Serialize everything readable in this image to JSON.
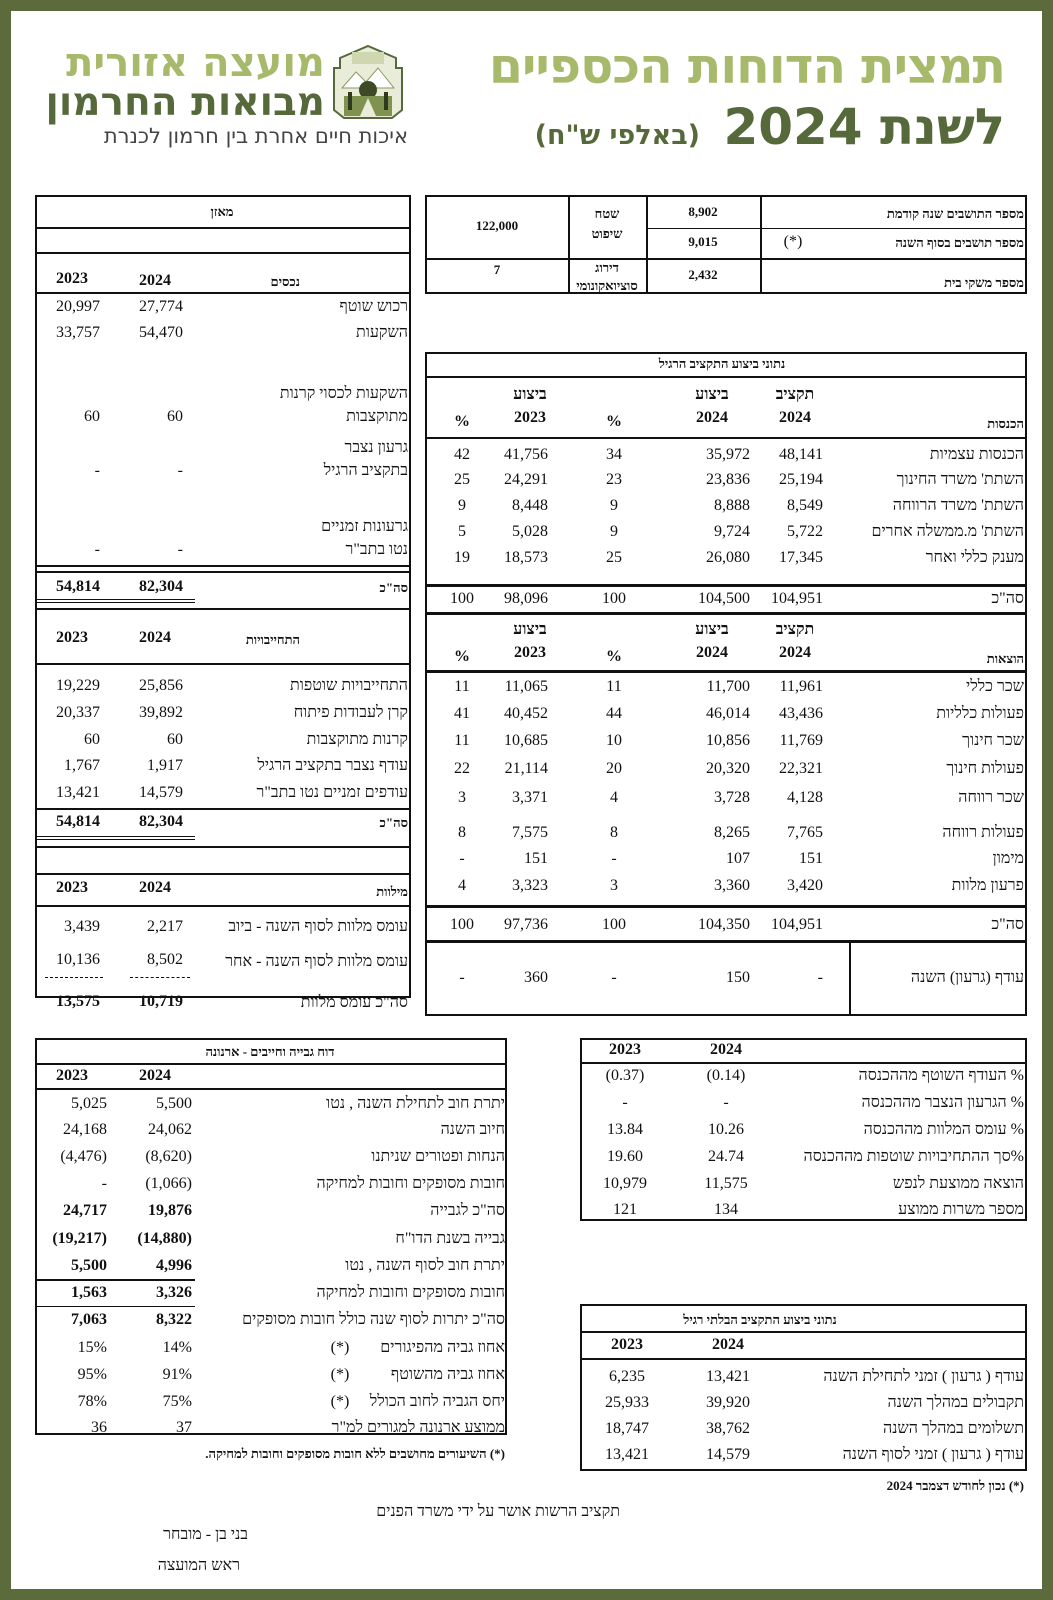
{
  "header": {
    "title_line1": "תמצית הדוחות הכספיים",
    "title_line2": "לשנת 2024",
    "title_unit": "(באלפי ש\"ח)",
    "org_line1": "מועצה אזורית",
    "org_line2": "מבואות החרמון",
    "slogan": "איכות חיים אחרת בין חרמון לכנרת",
    "logo_text": "מועצה אזורית מבואות החרמון",
    "colors": {
      "frame": "#5b6b3b",
      "light_green": "#a7b96a",
      "dark_green": "#56693a"
    }
  },
  "info": {
    "residents_prev_label": "מספר התושבים שנה קודמת",
    "residents_prev": "8,902",
    "residents_end_label": "מספר תושבים בסוף השנה",
    "residents_end_note": "(*)",
    "residents_end": "9,015",
    "households_label": "מספר משקי בית",
    "households": "2,432",
    "area_label_1": "שטח",
    "area_label_2": "שיפוט",
    "area": "122,000",
    "socio_label_1": "דירוג",
    "socio_label_2": "סוציואקונומי",
    "socio": "7"
  },
  "balance": {
    "title": "מאזן",
    "year_a": "2024",
    "year_b": "2023",
    "assets_header": "נכסים",
    "assets": [
      {
        "lines": [
          "רכוש שוטף"
        ],
        "v2024": "27,774",
        "v2023": "20,997"
      },
      {
        "lines": [
          "השקעות"
        ],
        "v2024": "54,470",
        "v2023": "33,757"
      },
      {
        "lines": [
          "השקעות לכסוי קרנות",
          "מתוקצבות"
        ],
        "v2024": "60",
        "v2023": "60"
      },
      {
        "lines": [
          "גרעון נצבר",
          "בתקציב הרגיל"
        ],
        "v2024": "-",
        "v2023": "-"
      },
      {
        "lines": [
          "גרעונות זמניים",
          "נטו בתב\"ר"
        ],
        "v2024": "-",
        "v2023": "-"
      }
    ],
    "assets_total": {
      "label": "סה\"כ",
      "v2024": "82,304",
      "v2023": "54,814"
    },
    "liabilities_header": "התחייבויות",
    "liabilities": [
      {
        "label": "התחייבויות שוטפות",
        "v2024": "25,856",
        "v2023": "19,229"
      },
      {
        "label": "קרן לעבודות פיתוח",
        "v2024": "39,892",
        "v2023": "20,337"
      },
      {
        "label": "קרנות מתוקצבות",
        "v2024": "60",
        "v2023": "60"
      },
      {
        "label": "עודף נצבר בתקציב הרגיל",
        "v2024": "1,917",
        "v2023": "1,767"
      },
      {
        "label": "עודפים זמניים נטו בתב\"ר",
        "v2024": "14,579",
        "v2023": "13,421"
      }
    ],
    "liabilities_total": {
      "label": "סה\"כ",
      "v2024": "82,304",
      "v2023": "54,814"
    },
    "loans_header": "מילוות",
    "loans": [
      {
        "label": "עומס מלוות לסוף השנה - ביוב",
        "v2024": "2,217",
        "v2023": "3,439"
      },
      {
        "label": "עומס מלוות לסוף השנה - אחר",
        "v2024": "8,502",
        "v2023": "10,136"
      }
    ],
    "loans_total": {
      "label": "סה\"כ עומס מלוות",
      "v2024": "10,719",
      "v2023": "13,575"
    }
  },
  "budget": {
    "title": "נתוני ביצוע התקציב הרגיל",
    "col_budget": "תקציב",
    "col_exec": "ביצוע",
    "year_2024": "2024",
    "year_2023": "2023",
    "pct": "%",
    "income_header": "הכנסות",
    "income": [
      {
        "label": "הכנסות עצמיות",
        "budget": "48,141",
        "exec2024": "35,972",
        "pct2024": "34",
        "exec2023": "41,756",
        "pct2023": "42"
      },
      {
        "label": "השתת' משרד  החינוך",
        "budget": "25,194",
        "exec2024": "23,836",
        "pct2024": "23",
        "exec2023": "24,291",
        "pct2023": "25"
      },
      {
        "label": "השתת' משרד הרווחה",
        "budget": "8,549",
        "exec2024": "8,888",
        "pct2024": "9",
        "exec2023": "8,448",
        "pct2023": "9"
      },
      {
        "label": "השתת' מ.ממשלה אחרים",
        "budget": "5,722",
        "exec2024": "9,724",
        "pct2024": "9",
        "exec2023": "5,028",
        "pct2023": "5"
      },
      {
        "label": "מענק כללי ואחר",
        "budget": "17,345",
        "exec2024": "26,080",
        "pct2024": "25",
        "exec2023": "18,573",
        "pct2023": "19"
      }
    ],
    "income_total": {
      "label": "סה\"כ",
      "budget": "104,951",
      "exec2024": "104,500",
      "pct2024": "100",
      "exec2023": "98,096",
      "pct2023": "100"
    },
    "expense_header": "הוצאות",
    "expenses": [
      {
        "label": "שכר כללי",
        "budget": "11,961",
        "exec2024": "11,700",
        "pct2024": "11",
        "exec2023": "11,065",
        "pct2023": "11"
      },
      {
        "label": "פעולות כלליות",
        "budget": "43,436",
        "exec2024": "46,014",
        "pct2024": "44",
        "exec2023": "40,452",
        "pct2023": "41"
      },
      {
        "label": "שכר חינוך",
        "budget": "11,769",
        "exec2024": "10,856",
        "pct2024": "10",
        "exec2023": "10,685",
        "pct2023": "11"
      },
      {
        "label": "פעולות חינוך",
        "budget": "22,321",
        "exec2024": "20,320",
        "pct2024": "20",
        "exec2023": "21,114",
        "pct2023": "22"
      },
      {
        "label": "שכר רווחה",
        "budget": "4,128",
        "exec2024": "3,728",
        "pct2024": "4",
        "exec2023": "3,371",
        "pct2023": "3"
      },
      {
        "label": "פעולות רווחה",
        "budget": "7,765",
        "exec2024": "8,265",
        "pct2024": "8",
        "exec2023": "7,575",
        "pct2023": "8"
      },
      {
        "label": "מימון",
        "budget": "151",
        "exec2024": "107",
        "pct2024": "-",
        "exec2023": "151",
        "pct2023": "-"
      },
      {
        "label": "פרעון מלוות",
        "budget": "3,420",
        "exec2024": "3,360",
        "pct2024": "3",
        "exec2023": "3,323",
        "pct2023": "4"
      }
    ],
    "expense_total": {
      "label": "סה\"כ",
      "budget": "104,951",
      "exec2024": "104,350",
      "pct2024": "100",
      "exec2023": "97,736",
      "pct2023": "100"
    },
    "surplus": {
      "label": "עודף (גרעון) השנה",
      "budget": "-",
      "exec2024": "150",
      "pct2024": "-",
      "exec2023": "360",
      "pct2023": "-"
    }
  },
  "collection": {
    "title": "דוח גבייה וחייבים - ארנונה",
    "year_a": "2024",
    "year_b": "2023",
    "rows": [
      {
        "label": "יתרת חוב לתחילת השנה , נטו",
        "note": "",
        "v2024": "5,500",
        "v2023": "5,025",
        "bold": false
      },
      {
        "label": "חיוב השנה",
        "note": "",
        "v2024": "24,062",
        "v2023": "24,168",
        "bold": false
      },
      {
        "label": "הנחות ופטורים  שניתנו",
        "note": "",
        "v2024": "(8,620)",
        "v2023": "(4,476)",
        "bold": false
      },
      {
        "label": "חובות מסופקים וחובות למחיקה",
        "note": "",
        "v2024": "(1,066)",
        "v2023": "-",
        "bold": false
      },
      {
        "label": "סה\"כ לגבייה",
        "note": "",
        "v2024": "19,876",
        "v2023": "24,717",
        "bold": true
      },
      {
        "label": "גבייה בשנת הדו\"ח",
        "note": "",
        "v2024": "(14,880)",
        "v2023": "(19,217)",
        "bold": true
      },
      {
        "label": "יתרת חוב לסוף השנה , נטו",
        "note": "",
        "v2024": "4,996",
        "v2023": "5,500",
        "bold": true
      },
      {
        "label": "חובות מסופקים וחובות למחיקה",
        "note": "",
        "v2024": "3,326",
        "v2023": "1,563",
        "bold": true
      },
      {
        "label": "סה\"כ יתרות לסוף שנה כולל חובות מסופקים",
        "note": "",
        "v2024": "8,322",
        "v2023": "7,063",
        "bold": true
      },
      {
        "label": "אחוז גביה מהפיגורים",
        "note": "(*)",
        "v2024": "14%",
        "v2023": "15%",
        "bold": false
      },
      {
        "label": "אחוז גביה מהשוטף",
        "note": "(*)",
        "v2024": "91%",
        "v2023": "95%",
        "bold": false
      },
      {
        "label": "יחס הגביה לחוב הכולל",
        "note": "(*)",
        "v2024": "75%",
        "v2023": "78%",
        "bold": false
      },
      {
        "label": "ממוצע ארנונה למגורים למ\"ר",
        "note": "",
        "v2024": "37",
        "v2023": "36",
        "bold": false
      }
    ],
    "footnote": "(*) השיעורים מחושבים ללא חובות מסופקים וחובות למחיקה."
  },
  "indicators": {
    "year_a": "2024",
    "year_b": "2023",
    "rows": [
      {
        "label": "% העודף השוטף מההכנסה",
        "v2024": "(0.14)",
        "v2023": "(0.37)"
      },
      {
        "label": "% הגרעון הנצבר מההכנסה",
        "v2024": "-",
        "v2023": "-"
      },
      {
        "label": "% עומס המלוות מההכנסה",
        "v2024": "10.26",
        "v2023": "13.84"
      },
      {
        "label": "%סך ההתחיבויות שוטפות מההכנסה",
        "v2024": "24.74",
        "v2023": "19.60"
      },
      {
        "label": "הוצאה ממוצעת לנפש",
        "v2024": "11,575",
        "v2023": "10,979"
      },
      {
        "label": "מספר משרות ממוצע",
        "v2024": "134",
        "v2023": "121"
      }
    ]
  },
  "nonregular": {
    "title": "נתוני ביצוע התקציב הבלתי רגיל",
    "year_a": "2024",
    "year_b": "2023",
    "rows": [
      {
        "label": "עודף ( גרעון ) זמני לתחילת השנה",
        "v2024": "13,421",
        "v2023": "6,235"
      },
      {
        "label": "תקבולים במהלך השנה",
        "v2024": "39,920",
        "v2023": "25,933"
      },
      {
        "label": "תשלומים במהלך השנה",
        "v2024": "38,762",
        "v2023": "18,747"
      },
      {
        "label": "עודף ( גרעון ) זמני לסוף השנה",
        "v2024": "14,579",
        "v2023": "13,421"
      }
    ]
  },
  "footer": {
    "date_note": "(*) נכון לחודש דצמבר 2024",
    "approval": "תקציב הרשות אושר על ידי משרד הפנים",
    "signer_name": "בני  בן - מובחר",
    "signer_title": "ראש  המועצה"
  }
}
